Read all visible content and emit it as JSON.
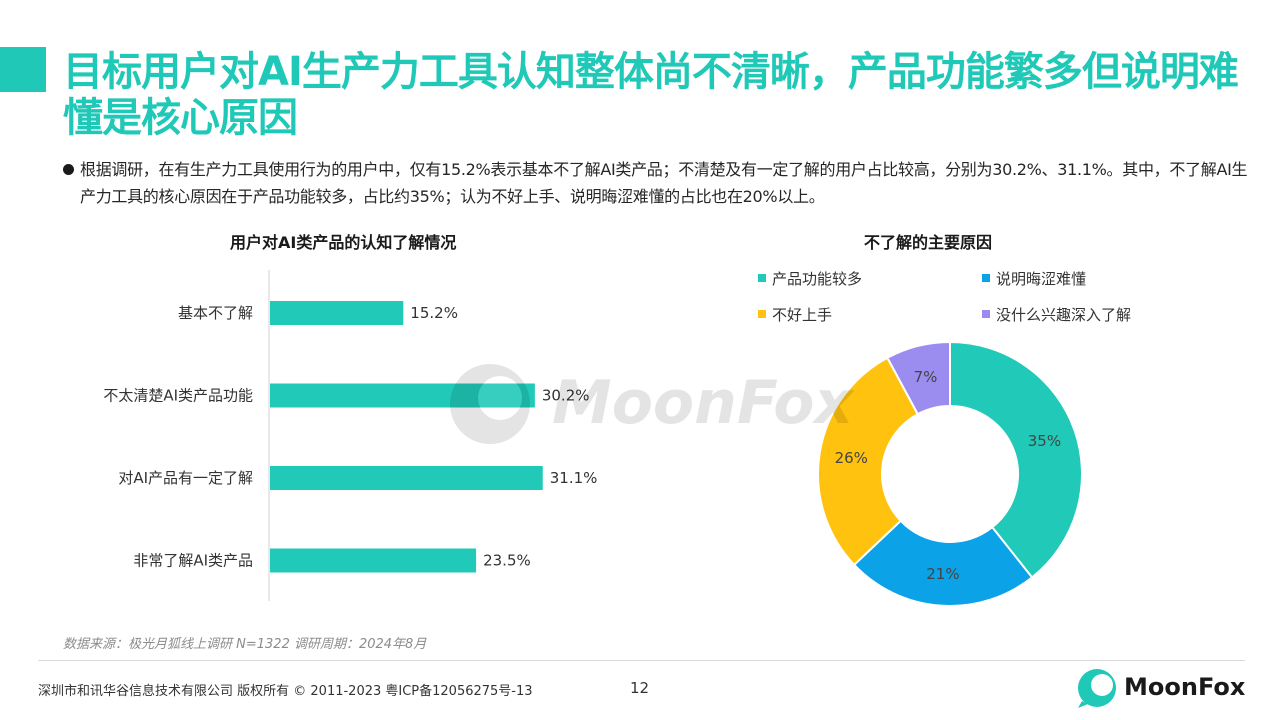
{
  "colors": {
    "accent": "#1fc8b7",
    "title": "#1fc8b7",
    "bar": "#20c9b8",
    "pie": [
      "#20c9b8",
      "#0ca2e8",
      "#ffc20e",
      "#9b8cf0"
    ]
  },
  "header": {
    "title": "目标用户对AI生产力工具认知整体尚不清晰，产品功能繁多但说明难懂是核心原因"
  },
  "summary": {
    "text": "根据调研，在有生产力工具使用行为的用户中，仅有15.2%表示基本不了解AI类产品；不清楚及有一定了解的用户占比较高，分别为30.2%、31.1%。其中，不了解AI生产力工具的核心原因在于产品功能较多，占比约35%；认为不好上手、说明晦涩难懂的占比也在20%以上。"
  },
  "chart_data": [
    {
      "type": "bar",
      "orientation": "horizontal",
      "title": "用户对AI类产品的认知了解情况",
      "categories": [
        "基本不了解",
        "不太清楚AI类产品功能",
        "对AI产品有一定了解",
        "非常了解AI类产品"
      ],
      "values": [
        15.2,
        30.2,
        31.1,
        23.5
      ],
      "value_labels": [
        "15.2%",
        "30.2%",
        "31.1%",
        "23.5%"
      ],
      "unit": "%",
      "xlim": [
        0,
        100
      ],
      "grid": false
    },
    {
      "type": "pie",
      "variant": "donut",
      "title": "不了解的主要原因",
      "categories": [
        "产品功能较多",
        "说明晦涩难懂",
        "不好上手",
        "没什么兴趣深入了解"
      ],
      "values": [
        35,
        21,
        26,
        7
      ],
      "value_labels": [
        "35%",
        "21%",
        "26%",
        "7%"
      ],
      "legend_position": "top"
    }
  ],
  "watermark": {
    "text": "MoonFox"
  },
  "footer": {
    "source": "数据来源：极光月狐线上调研 N=1322 调研周期：2024年8月",
    "copyright": "深圳市和讯华谷信息技术有限公司 版权所有 © 2011-2023 粤ICP备12056275号-13",
    "page_number": "12",
    "logo_text": "MoonFox"
  }
}
